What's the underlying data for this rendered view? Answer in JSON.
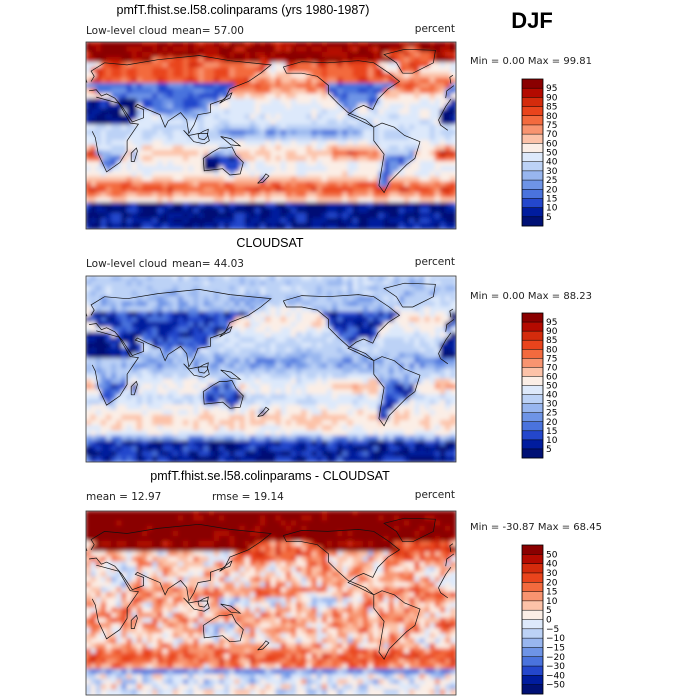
{
  "season": "DJF",
  "chart_data": [
    {
      "type": "heatmap",
      "title": "pmfT.fhist.se.l58.colinparams (yrs 1980-1987)",
      "variable": "Low-level cloud",
      "stat_text": "mean=  57.00",
      "units": "percent",
      "min_max_text": "Min =    0.00 Max =   99.81",
      "mean": 57.0,
      "min": 0.0,
      "max": 99.81,
      "colorbar_levels": [
        "95",
        "90",
        "85",
        "80",
        "75",
        "70",
        "60",
        "50",
        "40",
        "30",
        "25",
        "20",
        "15",
        "10",
        "5"
      ],
      "colorbar_colors": [
        "#8a0000",
        "#b40a00",
        "#d42b0c",
        "#e9441c",
        "#f36a3e",
        "#f89470",
        "#fcc2a8",
        "#fbeee6",
        "#dde9fb",
        "#bcd2f6",
        "#98b6ef",
        "#6e94e6",
        "#4a73dd",
        "#2447cc",
        "#001c9e",
        "#001075"
      ]
    },
    {
      "type": "heatmap",
      "title": "CLOUDSAT",
      "variable": "Low-level cloud",
      "stat_text": "mean=  44.03",
      "units": "percent",
      "min_max_text": "Min =    0.00 Max =   88.23",
      "mean": 44.03,
      "min": 0.0,
      "max": 88.23,
      "colorbar_levels": [
        "95",
        "90",
        "85",
        "80",
        "75",
        "70",
        "60",
        "50",
        "40",
        "30",
        "25",
        "20",
        "15",
        "10",
        "5"
      ],
      "colorbar_colors": [
        "#8a0000",
        "#b40a00",
        "#d42b0c",
        "#e9441c",
        "#f36a3e",
        "#f89470",
        "#fcc2a8",
        "#fbeee6",
        "#dde9fb",
        "#bcd2f6",
        "#98b6ef",
        "#6e94e6",
        "#4a73dd",
        "#2447cc",
        "#001c9e",
        "#001075"
      ]
    },
    {
      "type": "heatmap",
      "title": "pmfT.fhist.se.l58.colinparams - CLOUDSAT",
      "variable": "mean =   12.97",
      "stat_text": "rmse =   19.14",
      "units": "percent",
      "min_max_text": "Min = -30.87 Max =   68.45",
      "mean": 12.97,
      "rmse": 19.14,
      "min": -30.87,
      "max": 68.45,
      "colorbar_levels": [
        "50",
        "40",
        "30",
        "20",
        "15",
        "10",
        "5",
        "0",
        "−5",
        "−10",
        "−15",
        "−20",
        "−30",
        "−40",
        "−50"
      ],
      "colorbar_colors": [
        "#8a0000",
        "#b40a00",
        "#d42b0c",
        "#e9441c",
        "#f36a3e",
        "#f89470",
        "#fcc2a8",
        "#fbeee6",
        "#dde9fb",
        "#bcd2f6",
        "#98b6ef",
        "#6e94e6",
        "#4a73dd",
        "#2447cc",
        "#001c9e",
        "#001075"
      ]
    }
  ]
}
